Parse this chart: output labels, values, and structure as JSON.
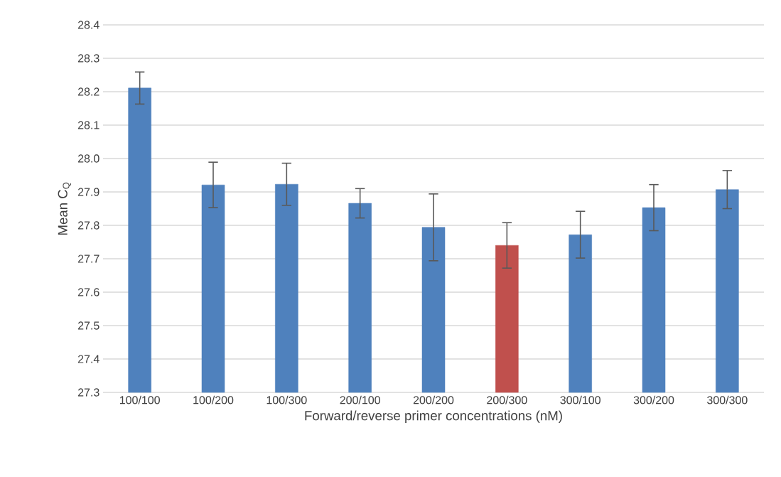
{
  "chart_data": {
    "type": "bar",
    "xlabel": "Forward/reverse primer concentrations (nM)",
    "ylabel": "Mean C$_{Q}$",
    "categories": [
      "100/100",
      "100/200",
      "100/300",
      "200/100",
      "200/200",
      "200/300",
      "300/100",
      "300/200",
      "300/300"
    ],
    "values": [
      28.211,
      27.921,
      27.923,
      27.866,
      27.794,
      27.74,
      27.772,
      27.853,
      27.907
    ],
    "errors": [
      0.048,
      0.068,
      0.063,
      0.044,
      0.1,
      0.068,
      0.07,
      0.069,
      0.057
    ],
    "colors": [
      "#4f81bd",
      "#4f81bd",
      "#4f81bd",
      "#4f81bd",
      "#4f81bd",
      "#c0504d",
      "#4f81bd",
      "#4f81bd",
      "#4f81bd"
    ],
    "ylim": [
      27.3,
      28.4
    ],
    "yticks": [
      27.3,
      27.4,
      27.5,
      27.6,
      27.7,
      27.8,
      27.9,
      {
        "value": 28.0,
        "label": "28.0"
      },
      28.1,
      28.2,
      28.3,
      28.4
    ],
    "grid": "y"
  }
}
